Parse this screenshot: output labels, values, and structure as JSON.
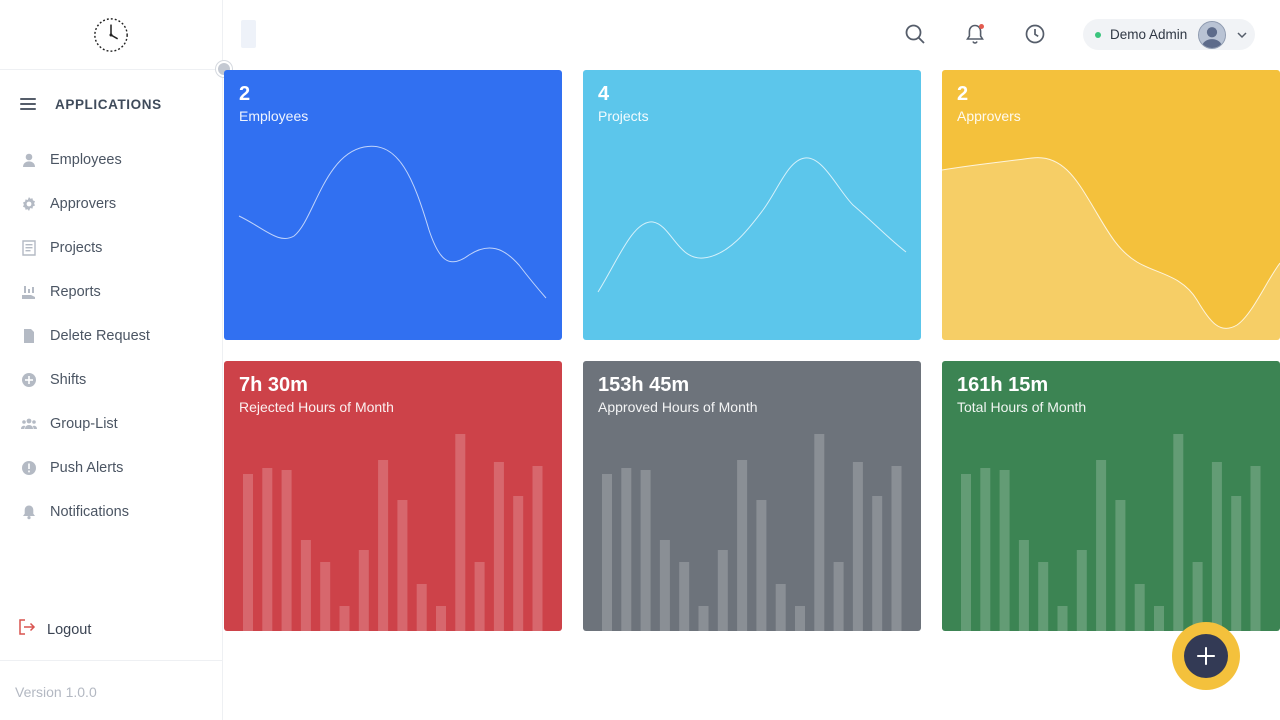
{
  "sidebar": {
    "logo_icon": "rocky-time-logo",
    "section_title": "APPLICATIONS",
    "items": [
      {
        "label": "Employees",
        "icon": "person-icon"
      },
      {
        "label": "Approvers",
        "icon": "gear-icon"
      },
      {
        "label": "Projects",
        "icon": "document-icon"
      },
      {
        "label": "Reports",
        "icon": "hand-chart-icon"
      },
      {
        "label": "Delete Request",
        "icon": "file-icon"
      },
      {
        "label": "Shifts",
        "icon": "plus-circle-icon"
      },
      {
        "label": "Group-List",
        "icon": "group-icon"
      },
      {
        "label": "Push Alerts",
        "icon": "alert-icon"
      },
      {
        "label": "Notifications",
        "icon": "bell-icon"
      }
    ],
    "logout_label": "Logout",
    "version": "Version 1.0.0"
  },
  "topbar": {
    "user_name": "Demo Admin"
  },
  "cards": [
    {
      "value": "2",
      "label": "Employees",
      "color": "#3170f1"
    },
    {
      "value": "4",
      "label": "Projects",
      "color": "#5cc6eb"
    },
    {
      "value": "2",
      "label": "Approvers",
      "color": "#f4c13c"
    },
    {
      "value": "7h 30m",
      "label": "Rejected Hours of Month",
      "color": "#cd4249"
    },
    {
      "value": "153h 45m",
      "label": "Approved Hours of Month",
      "color": "#6d737b"
    },
    {
      "value": "161h 15m",
      "label": "Total Hours of Month",
      "color": "#3c8453"
    }
  ],
  "colors": {
    "accent": "#f4c13c",
    "fab_inner": "#333a55",
    "online": "#3ac47d"
  }
}
